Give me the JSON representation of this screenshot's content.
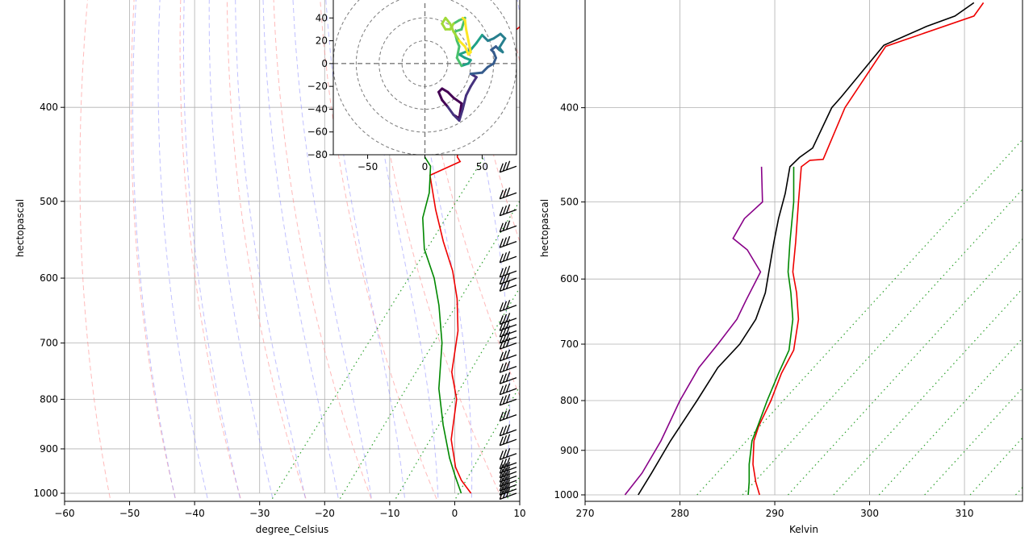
{
  "chart_data": [
    {
      "type": "line",
      "title": "",
      "xlabel": "degree_Celsius",
      "ylabel": "hectopascal",
      "xlim": [
        -60,
        10
      ],
      "ylim": [
        1000,
        310
      ],
      "yscale": "log",
      "grid": true,
      "x_ticks": [
        "−60",
        "−50",
        "−40",
        "−30",
        "−20",
        "−10",
        "0",
        "10"
      ],
      "y_ticks": [
        "1000",
        "900",
        "800",
        "700",
        "600",
        "500",
        "400"
      ],
      "series": [
        {
          "color": "#ee0000",
          "points": [
            [
              2.5,
              1000
            ],
            [
              -0.5,
              970
            ],
            [
              -3,
              940
            ],
            [
              -7,
              880
            ],
            [
              -11,
              800
            ],
            [
              -15,
              750
            ],
            [
              -19,
              680
            ],
            [
              -23,
              630
            ],
            [
              -27,
              590
            ],
            [
              -32,
              550
            ],
            [
              -37,
              510
            ],
            [
              -42,
              470
            ],
            [
              -39,
              455
            ],
            [
              -40,
              450
            ],
            [
              -45,
              400
            ],
            [
              -47,
              370
            ],
            [
              -48,
              355
            ],
            [
              -46,
              330
            ],
            [
              -46,
              315
            ]
          ]
        },
        {
          "color": "#008800",
          "points": [
            [
              1,
              1000
            ],
            [
              -2,
              960
            ],
            [
              -5,
              920
            ],
            [
              -10,
              850
            ],
            [
              -15,
              780
            ],
            [
              -20,
              700
            ],
            [
              -25,
              640
            ],
            [
              -29,
              600
            ],
            [
              -34,
              560
            ],
            [
              -38,
              520
            ],
            [
              -40,
              490
            ],
            [
              -43,
              460
            ],
            [
              -45,
              450
            ]
          ]
        }
      ],
      "barbs": {
        "color": "#000000",
        "x": 9.5,
        "pressures": [
          1000,
          990,
          980,
          970,
          960,
          950,
          940,
          930,
          910,
          880,
          860,
          830,
          800,
          780,
          760,
          740,
          720,
          700,
          690,
          680,
          670,
          660,
          640,
          610,
          600,
          590,
          570,
          550,
          530,
          510,
          490,
          460,
          440,
          420,
          400,
          380,
          360,
          340,
          320
        ]
      },
      "hodograph": {
        "type": "line",
        "xlim": [
          -80,
          80
        ],
        "ylim": [
          -80,
          60
        ],
        "x_ticks": [
          "−50",
          "0",
          "50"
        ],
        "y_ticks": [
          "40",
          "20",
          "0",
          "−20",
          "−40",
          "−60",
          "−80"
        ],
        "rings": [
          20,
          40,
          60,
          80
        ],
        "points": [
          [
            25,
            -45
          ],
          [
            30,
            -48
          ],
          [
            32,
            -35
          ],
          [
            25,
            -30
          ],
          [
            20,
            -25
          ],
          [
            15,
            -22
          ],
          [
            12,
            -25
          ],
          [
            15,
            -32
          ],
          [
            20,
            -38
          ],
          [
            25,
            -45
          ],
          [
            30,
            -50
          ],
          [
            33,
            -40
          ],
          [
            36,
            -28
          ],
          [
            40,
            -20
          ],
          [
            45,
            -12
          ],
          [
            40,
            -9
          ],
          [
            50,
            -8
          ],
          [
            55,
            -3
          ],
          [
            60,
            0
          ],
          [
            62,
            5
          ],
          [
            60,
            10
          ],
          [
            58,
            12
          ],
          [
            62,
            15
          ],
          [
            65,
            12
          ],
          [
            68,
            10
          ],
          [
            65,
            14
          ],
          [
            70,
            22
          ],
          [
            66,
            26
          ],
          [
            60,
            22
          ],
          [
            55,
            20
          ],
          [
            50,
            25
          ],
          [
            45,
            18
          ],
          [
            40,
            12
          ],
          [
            30,
            8
          ],
          [
            35,
            5
          ],
          [
            40,
            3
          ],
          [
            38,
            0
          ],
          [
            32,
            -2
          ],
          [
            28,
            5
          ],
          [
            30,
            15
          ],
          [
            28,
            20
          ],
          [
            26,
            28
          ],
          [
            32,
            30
          ],
          [
            35,
            40
          ],
          [
            30,
            38
          ],
          [
            25,
            35
          ],
          [
            22,
            30
          ],
          [
            18,
            30
          ],
          [
            15,
            35
          ],
          [
            18,
            40
          ],
          [
            22,
            35
          ],
          [
            25,
            28
          ],
          [
            30,
            20
          ],
          [
            35,
            15
          ],
          [
            38,
            8
          ],
          [
            40,
            10
          ],
          [
            38,
            20
          ],
          [
            36,
            30
          ],
          [
            35,
            38
          ],
          [
            33,
            40
          ]
        ]
      }
    },
    {
      "type": "line",
      "title": "",
      "xlabel": "Kelvin",
      "ylabel": "hectopascal",
      "xlim": [
        270,
        320
      ],
      "ylim": [
        1000,
        310
      ],
      "yscale": "log",
      "grid": true,
      "x_ticks": [
        "270",
        "280",
        "290",
        "300",
        "310"
      ],
      "y_ticks": [
        "1000",
        "900",
        "800",
        "700",
        "600",
        "500",
        "400"
      ],
      "series": [
        {
          "color": "#000000",
          "points": [
            [
              275.6,
              1000
            ],
            [
              277,
              950
            ],
            [
              279,
              880
            ],
            [
              281.8,
              800
            ],
            [
              284,
              740
            ],
            [
              286.3,
              700
            ],
            [
              288,
              660
            ],
            [
              289,
              620
            ],
            [
              289.5,
              580
            ],
            [
              289.9,
              550
            ],
            [
              290.4,
              520
            ],
            [
              291.1,
              490
            ],
            [
              291.6,
              460
            ],
            [
              292.6,
              450
            ],
            [
              294,
              440
            ],
            [
              296,
              400
            ],
            [
              297,
              390
            ],
            [
              301.5,
              345
            ],
            [
              306,
              330
            ],
            [
              309,
              322
            ],
            [
              311,
              312
            ]
          ]
        },
        {
          "color": "#ee0000",
          "points": [
            [
              288.4,
              1000
            ],
            [
              288,
              970
            ],
            [
              287.7,
              930
            ],
            [
              287.8,
              880
            ],
            [
              288.3,
              850
            ],
            [
              289.6,
              800
            ],
            [
              290.7,
              750
            ],
            [
              292,
              710
            ],
            [
              292.5,
              660
            ],
            [
              292.3,
              620
            ],
            [
              291.9,
              590
            ],
            [
              292.2,
              550
            ],
            [
              292.5,
              500
            ],
            [
              292.8,
              460
            ],
            [
              293.7,
              453
            ],
            [
              295.1,
              452
            ],
            [
              297.4,
              400
            ],
            [
              301.7,
              346
            ],
            [
              311,
              322
            ],
            [
              312,
              312
            ]
          ]
        },
        {
          "color": "#008800",
          "points": [
            [
              287.2,
              1000
            ],
            [
              287.3,
              970
            ],
            [
              287.3,
              930
            ],
            [
              287.6,
              880
            ],
            [
              288.2,
              850
            ],
            [
              289.2,
              800
            ],
            [
              290.4,
              750
            ],
            [
              291.5,
              710
            ],
            [
              291.9,
              660
            ],
            [
              291.7,
              620
            ],
            [
              291.4,
              590
            ],
            [
              291.6,
              550
            ],
            [
              292,
              500
            ],
            [
              292,
              460
            ]
          ]
        },
        {
          "color": "#880088",
          "points": [
            [
              274.2,
              1000
            ],
            [
              276,
              950
            ],
            [
              278,
              880
            ],
            [
              280,
              800
            ],
            [
              282,
              740
            ],
            [
              284,
              700
            ],
            [
              286,
              660
            ],
            [
              287,
              630
            ],
            [
              288.5,
              590
            ],
            [
              287.1,
              560
            ],
            [
              285.6,
              545
            ],
            [
              286.8,
              520
            ],
            [
              288.7,
              500
            ],
            [
              288.6,
              460
            ]
          ]
        }
      ],
      "barbs": {
        "color": "#000000",
        "x": 319.6,
        "pressures": [
          1000,
          990,
          980,
          970,
          960,
          950,
          940,
          930,
          910,
          880,
          860,
          830,
          800,
          780,
          760,
          740,
          720,
          700,
          690,
          680,
          670,
          660,
          640,
          610,
          600,
          590,
          570,
          550,
          530,
          510,
          490,
          460,
          440,
          420,
          400,
          380,
          360,
          340,
          320
        ]
      }
    }
  ]
}
